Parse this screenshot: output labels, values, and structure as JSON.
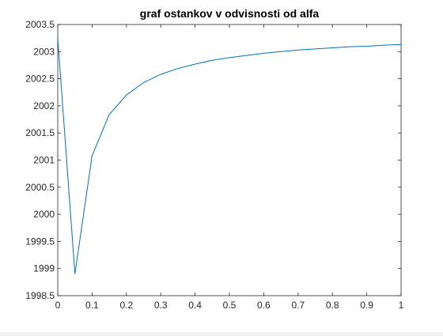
{
  "chart_data": {
    "type": "line",
    "title": "graf ostankov v odvisnosti od alfa",
    "xlabel": "",
    "ylabel": "",
    "xlim": [
      0,
      1
    ],
    "ylim": [
      1998.5,
      2003.5
    ],
    "xticks": [
      "0",
      "0.1",
      "0.2",
      "0.3",
      "0.4",
      "0.5",
      "0.6",
      "0.7",
      "0.8",
      "0.9",
      "1"
    ],
    "yticks": [
      "1998.5",
      "1999",
      "1999.5",
      "2000",
      "2000.5",
      "2001",
      "2001.5",
      "2002",
      "2002.5",
      "2003",
      "2003.5"
    ],
    "grid": false,
    "line_color": "#0072BD",
    "series": [
      {
        "x": [
          0,
          0.05,
          0.1,
          0.15,
          0.2,
          0.25,
          0.3,
          0.35,
          0.4,
          0.45,
          0.5,
          0.55,
          0.6,
          0.65,
          0.7,
          0.75,
          0.8,
          0.85,
          0.9,
          0.95,
          1.0
        ],
        "values": [
          2003.25,
          1998.9,
          2001.08,
          2001.84,
          2002.2,
          2002.43,
          2002.58,
          2002.69,
          2002.77,
          2002.84,
          2002.89,
          2002.93,
          2002.97,
          2003.0,
          2003.03,
          2003.05,
          2003.07,
          2003.09,
          2003.1,
          2003.12,
          2003.13
        ]
      }
    ]
  }
}
